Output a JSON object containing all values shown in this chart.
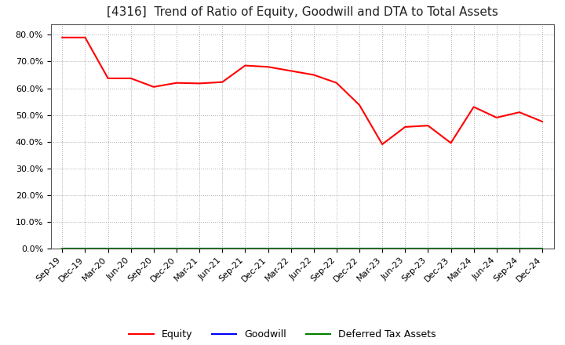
{
  "title": "[4316]  Trend of Ratio of Equity, Goodwill and DTA to Total Assets",
  "x_labels": [
    "Sep-19",
    "Dec-19",
    "Mar-20",
    "Jun-20",
    "Sep-20",
    "Dec-20",
    "Mar-21",
    "Jun-21",
    "Sep-21",
    "Dec-21",
    "Mar-22",
    "Jun-22",
    "Sep-22",
    "Dec-22",
    "Mar-23",
    "Jun-23",
    "Sep-23",
    "Dec-23",
    "Mar-24",
    "Jun-24",
    "Sep-24",
    "Dec-24"
  ],
  "equity": [
    0.79,
    0.79,
    0.637,
    0.637,
    0.605,
    0.62,
    0.618,
    0.623,
    0.685,
    0.68,
    0.665,
    0.65,
    0.62,
    0.537,
    0.39,
    0.455,
    0.46,
    0.395,
    0.53,
    0.49,
    0.51,
    0.475
  ],
  "goodwill": [
    0.0,
    0.0,
    0.0,
    0.0,
    0.0,
    0.0,
    0.0,
    0.0,
    0.0,
    0.0,
    0.0,
    0.0,
    0.0,
    0.0,
    0.0,
    0.0,
    0.0,
    0.0,
    0.0,
    0.0,
    0.0,
    0.0
  ],
  "dta": [
    0.0,
    0.0,
    0.0,
    0.0,
    0.0,
    0.0,
    0.0,
    0.0,
    0.0,
    0.0,
    0.0,
    0.0,
    0.0,
    0.0,
    0.0,
    0.0,
    0.0,
    0.0,
    0.0,
    0.0,
    0.0,
    0.0
  ],
  "equity_color": "#ff0000",
  "goodwill_color": "#0000ff",
  "dta_color": "#008000",
  "ylim": [
    0.0,
    0.84
  ],
  "yticks": [
    0.0,
    0.1,
    0.2,
    0.3,
    0.4,
    0.5,
    0.6,
    0.7,
    0.8
  ],
  "ytick_labels": [
    "0.0%",
    "10.0%",
    "20.0%",
    "30.0%",
    "40.0%",
    "50.0%",
    "60.0%",
    "70.0%",
    "80.0%"
  ],
  "background_color": "#ffffff",
  "grid_color": "#aaaaaa",
  "title_fontsize": 11,
  "tick_fontsize": 8,
  "legend_labels": [
    "Equity",
    "Goodwill",
    "Deferred Tax Assets"
  ]
}
